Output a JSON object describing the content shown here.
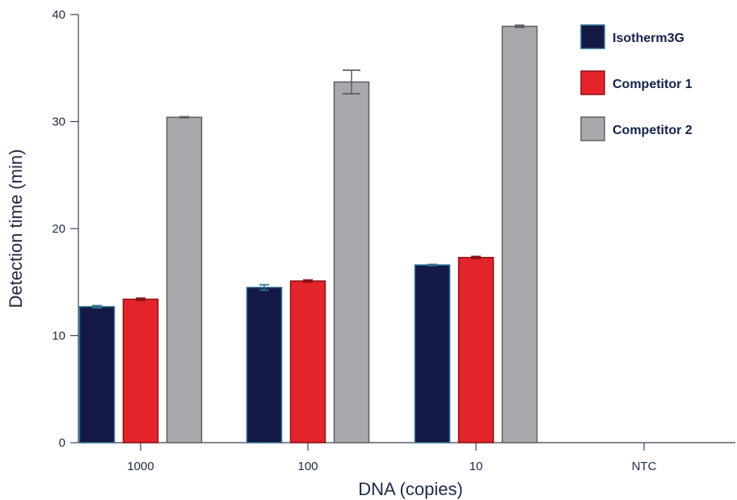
{
  "chart_data": {
    "type": "bar",
    "title": "",
    "xlabel": "DNA (copies)",
    "ylabel": "Detection time (min)",
    "categories": [
      "1000",
      "100",
      "10",
      "NTC"
    ],
    "ylim": [
      0,
      40
    ],
    "yticks": [
      0,
      10,
      20,
      30,
      40
    ],
    "grid": false,
    "legend_position": "top-right",
    "series": [
      {
        "name": "Isotherm3G",
        "color": "#141a45",
        "stroke": "#2f6f8f",
        "values": [
          12.7,
          14.5,
          16.6,
          null
        ],
        "errors": [
          0.1,
          0.25,
          0.05,
          null
        ]
      },
      {
        "name": "Competitor 1",
        "color": "#e3242b",
        "stroke": "#8a1418",
        "values": [
          13.4,
          15.1,
          17.3,
          null
        ],
        "errors": [
          0.1,
          0.1,
          0.1,
          null
        ]
      },
      {
        "name": "Competitor 2",
        "color": "#a8a9ad",
        "stroke": "#5e5f63",
        "values": [
          30.4,
          33.7,
          38.9,
          null
        ],
        "errors": [
          0.05,
          1.1,
          0.1,
          null
        ]
      }
    ]
  }
}
